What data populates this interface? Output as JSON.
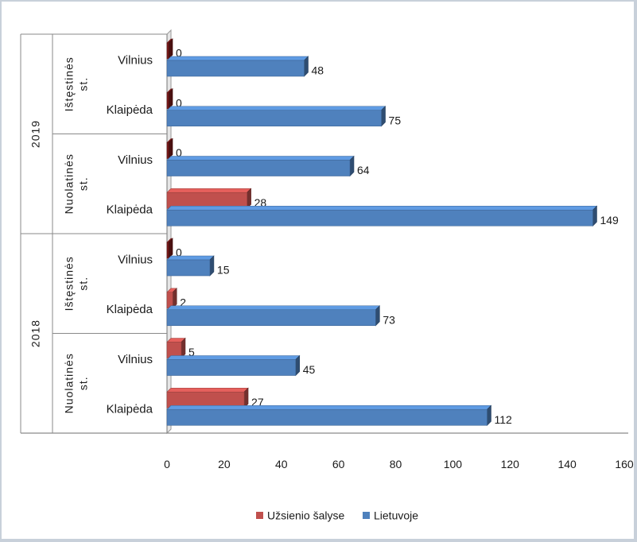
{
  "chart_data": {
    "type": "bar",
    "orientation": "horizontal",
    "style": "3d",
    "grid": false,
    "xlim": [
      0,
      160
    ],
    "x_ticks": [
      "0",
      "20",
      "40",
      "60",
      "80",
      "100",
      "120",
      "140",
      "160"
    ],
    "legend_position": "bottom",
    "series": [
      {
        "name": "Užsienio šalyse",
        "color": "#c0504d"
      },
      {
        "name": "Lietuvoje",
        "color": "#4f81bd"
      }
    ],
    "zero_bar_color": "#7b1a1a",
    "rows": [
      {
        "year": "2019",
        "group": "Ištęstinės st.",
        "city": "Vilnius",
        "values": [
          0,
          48
        ]
      },
      {
        "year": "2019",
        "group": "Ištęstinės st.",
        "city": "Klaipėda",
        "values": [
          0,
          75
        ]
      },
      {
        "year": "2019",
        "group": "Nuolatinės st.",
        "city": "Vilnius",
        "values": [
          0,
          64
        ]
      },
      {
        "year": "2019",
        "group": "Nuolatinės st.",
        "city": "Klaipėda",
        "values": [
          28,
          149
        ]
      },
      {
        "year": "2018",
        "group": "Ištęstinės st.",
        "city": "Vilnius",
        "values": [
          0,
          15
        ]
      },
      {
        "year": "2018",
        "group": "Ištęstinės st.",
        "city": "Klaipėda",
        "values": [
          2,
          73
        ]
      },
      {
        "year": "2018",
        "group": "Nuolatinės st.",
        "city": "Vilnius",
        "values": [
          5,
          45
        ]
      },
      {
        "year": "2018",
        "group": "Nuolatinės st.",
        "city": "Klaipėda",
        "values": [
          27,
          112
        ]
      }
    ]
  }
}
